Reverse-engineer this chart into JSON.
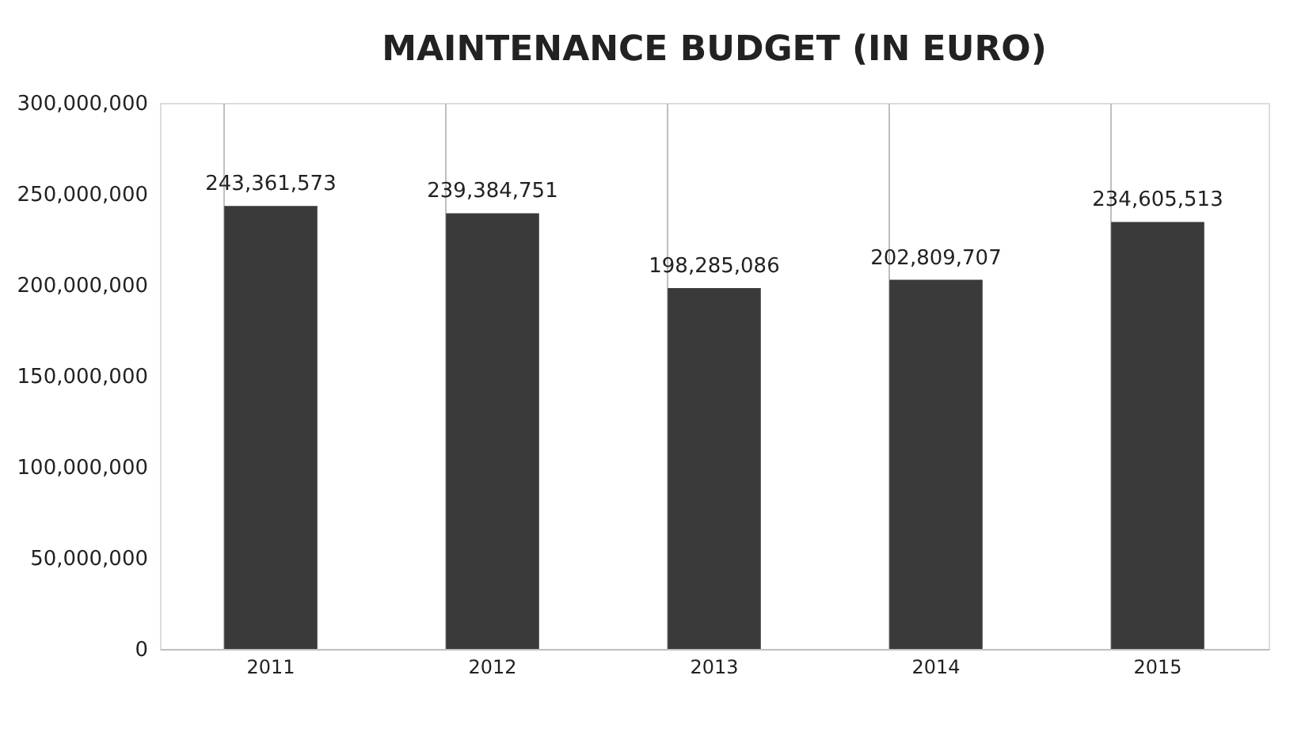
{
  "chart_data": {
    "type": "bar",
    "title": "MAINTENANCE  BUDGET (IN EURO)",
    "categories": [
      "2011",
      "2012",
      "2013",
      "2014",
      "2015"
    ],
    "values": [
      243361573,
      239384751,
      198285086,
      202809707,
      234605513
    ],
    "value_labels": [
      "243,361,573",
      "239,384,751",
      "198,285,086",
      "202,809,707",
      "234,605,513"
    ],
    "color": "#3a3a3a",
    "ylim": [
      0,
      300000000
    ],
    "yticks": [
      0,
      {
        "value": 50000000,
        "label": "50,000,000"
      },
      {
        "value": 100000000,
        "label": "100,000,000"
      },
      {
        "value": 150000000,
        "label": "150,000,000"
      },
      {
        "value": 200000000,
        "label": "200,000,000"
      },
      {
        "value": 250000000,
        "label": "250,000,000"
      },
      {
        "value": 300000000,
        "label": "300,000,000"
      }
    ],
    "grid": "x"
  }
}
